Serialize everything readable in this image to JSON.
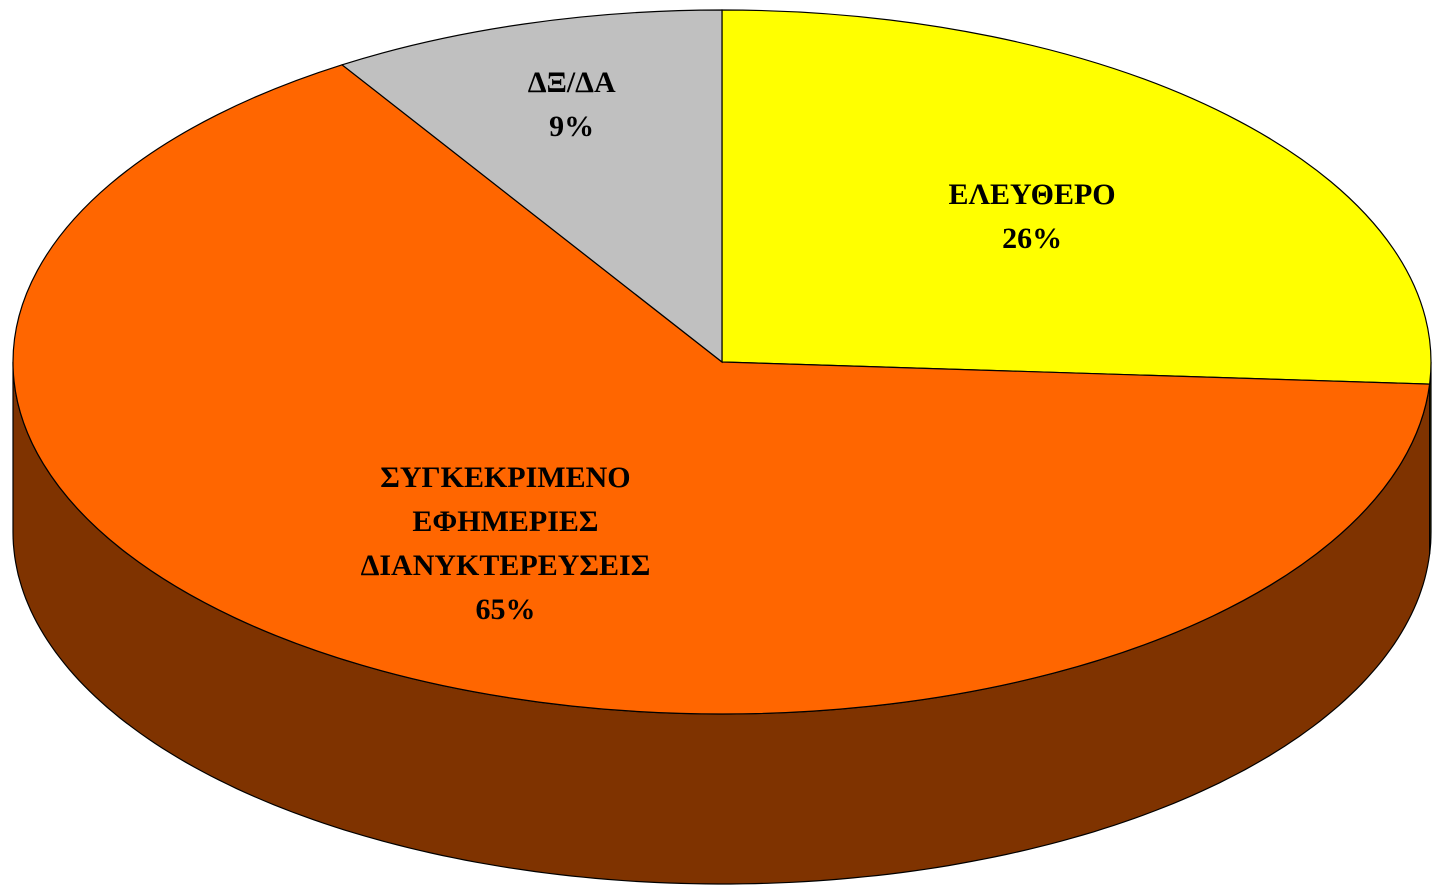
{
  "chart_data": {
    "type": "pie3d",
    "categories": [
      "ΕΛΕΥΘΕΡΟ",
      "ΣΥΓΚΕΚΡΙΜΕΝΟ ΕΦΗΜΕΡΙΕΣ ΔΙΑΝΥΚΤΕΡΕΥΣΕΙΣ",
      "ΔΞ/ΔΑ"
    ],
    "values": [
      26,
      65,
      9
    ],
    "value_labels": [
      "26%",
      "65%",
      "9%"
    ],
    "colors": [
      "#ffff00",
      "#ff6600",
      "#c0c0c0"
    ],
    "side_colors": [
      "#808000",
      "#7f3300",
      "#606060"
    ]
  }
}
